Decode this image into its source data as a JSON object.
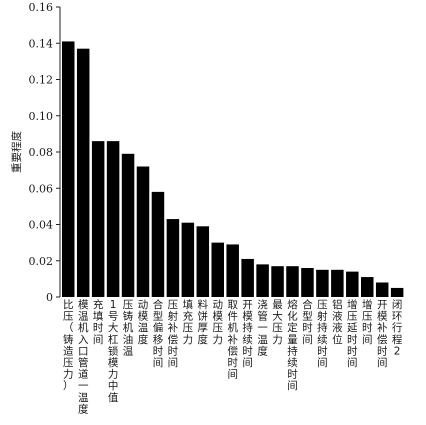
{
  "chart_data": {
    "type": "bar",
    "ylabel": "重要程度",
    "xlabel": "",
    "ylim": [
      0,
      0.16
    ],
    "yticks": [
      "0",
      "0.02",
      "0.04",
      "0.06",
      "0.08",
      "0.10",
      "0.12",
      "0.14",
      "0.16"
    ],
    "grid": false,
    "bar_color": "#000000",
    "categories": [
      "比压（铸造压力）",
      "模温机入口管道一温度",
      "充填时间",
      "1号大杠锁模力中值",
      "压铸机油温",
      "动模温度",
      "合型偏移时间",
      "压射补偿时间",
      "填充压力",
      "料饼厚度",
      "动模压力",
      "取件机补偿时间",
      "开模持续时间",
      "浇管一温度",
      "最大压力",
      "熔化定量持续时间",
      "合型时间",
      "压射持续时间",
      "铝液液位",
      "增压延时时间",
      "增压时间",
      "开模补偿时间",
      "闭环行程2"
    ],
    "values": [
      0.141,
      0.137,
      0.086,
      0.086,
      0.079,
      0.072,
      0.058,
      0.043,
      0.041,
      0.039,
      0.03,
      0.029,
      0.021,
      0.018,
      0.017,
      0.017,
      0.016,
      0.015,
      0.015,
      0.014,
      0.011,
      0.008,
      0.005
    ]
  }
}
